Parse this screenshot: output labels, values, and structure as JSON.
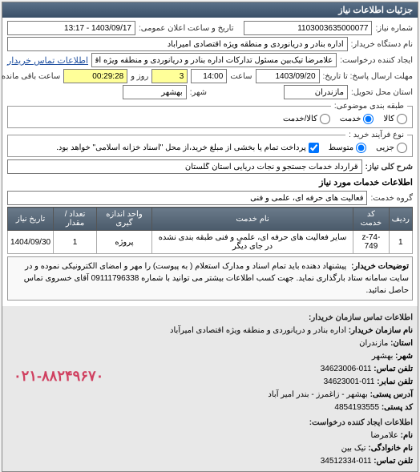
{
  "panelTitle": "جزئیات اطلاعات نیاز",
  "labels": {
    "requestNo": "شماره نیاز:",
    "publicDateTime": "تاریخ و ساعت اعلان عمومی:",
    "buyerDevice": "نام دستگاه خریدار:",
    "requester": "ایجاد کننده درخواست:",
    "contactBuyer": "اطلاعات تماس خریدار",
    "responseDeadline": "مهلت ارسال پاسخ: تا تاریخ:",
    "hour": "ساعت",
    "day": "روز و",
    "remaining": "ساعت باقی مانده",
    "deliveryProvince": "استان محل تحویل:",
    "deliveryCity": "شهر:",
    "categoryType": "طبقه بندی موضوعی:",
    "purchaseType": "نوع فرآیند خرید :",
    "needSubject": "شرح کلی نیاز:",
    "serviceGroup": "گروه خدمت:",
    "descriptions": "توضیحات خریدار:"
  },
  "values": {
    "requestNo": "1103003635000077",
    "publicDateTime": "1403/09/17 - 13:17",
    "buyerDevice": "اداره بنادر و دریانوردی و منطقه ویژه اقتصادی امیرآباد",
    "requester": "علامرضا تیک‌بین مسئول تدارکات اداره بنادر و دریانوردی و منطقه ویژه اقتصادی ا",
    "responseDate": "1403/09/20",
    "responseHour": "14:00",
    "remainingDays": "3",
    "remainingHours": "00:29:28",
    "province": "مازندران",
    "city": "بهشهر",
    "purchaseNote": "پرداخت تمام یا بخشی از مبلغ خرید،از محل \"اسناد خزانه اسلامی\" خواهد بود.",
    "needSubject": "قرارداد خدمات جستجو و نجات دریایی استان گلستان",
    "serviceGroup": "فعالیت های حرفه ای، علمی و فنی"
  },
  "categoryOptions": {
    "goods": "کالا",
    "service": "خدمت",
    "goodsService": "کالا/خدمت"
  },
  "purchaseOptions": {
    "small": "جزیی",
    "medium": "متوسط"
  },
  "infoSection": "اطلاعات خدمات مورد نیاز",
  "table": {
    "headers": {
      "row": "ردیف",
      "code": "کد خدمت",
      "name": "نام خدمت",
      "unit": "واحد اندازه گیری",
      "qty": "تعداد / مقدار",
      "date": "تاریخ نیاز"
    },
    "rows": [
      {
        "row": "1",
        "code": "z-74-749",
        "name": "سایر فعالیت های حرفه ای، علمی و فنی طبقه بندی نشده در جای دیگر",
        "unit": "پروژه",
        "qty": "1",
        "date": "1404/09/30"
      }
    ]
  },
  "notes": "پیشنهاد دهنده باید تمام اسناد و مدارک استعلام ( به پیوست) را مهر و امضای الکترونیکی نموده و در سایت سامانه ستاد بارگذاری نماید. جهت کسب اطلاعات بیشتر می توانید با شماره 09111796338 آقای خسروی تماس حاصل نمائید.",
  "contact": {
    "header1": "اطلاعات تماس سازمان خریدار:",
    "orgNameLbl": "نام سازمان خریدار:",
    "orgName": "اداره بنادر و دریانوردی و منطقه ویژه اقتصادی امیرآباد",
    "provinceLbl": "استان:",
    "province": "مازندران",
    "cityLbl": "شهر:",
    "city": "بهشهر",
    "phoneLbl": "تلفن تماس:",
    "phone1": "011-34623006",
    "faxLbl": "تلفن نمابر:",
    "fax": "011-34623001",
    "postAddrLbl": "آدرس پستی:",
    "postAddr": "بهشهر - زاغمرز - بندر امیر آباد",
    "postCodeLbl": "کد پستی:",
    "postCode": "4854193555",
    "header2": "اطلاعات ایجاد کننده درخواست:",
    "nameLbl": "نام:",
    "name": "علامرضا",
    "lastNameLbl": "نام خانوادگی:",
    "lastName": "تیک بین",
    "phone2": "011-34512334"
  },
  "bigPhone": "۰۲۱-۸۸۲۴۹۶۷۰"
}
